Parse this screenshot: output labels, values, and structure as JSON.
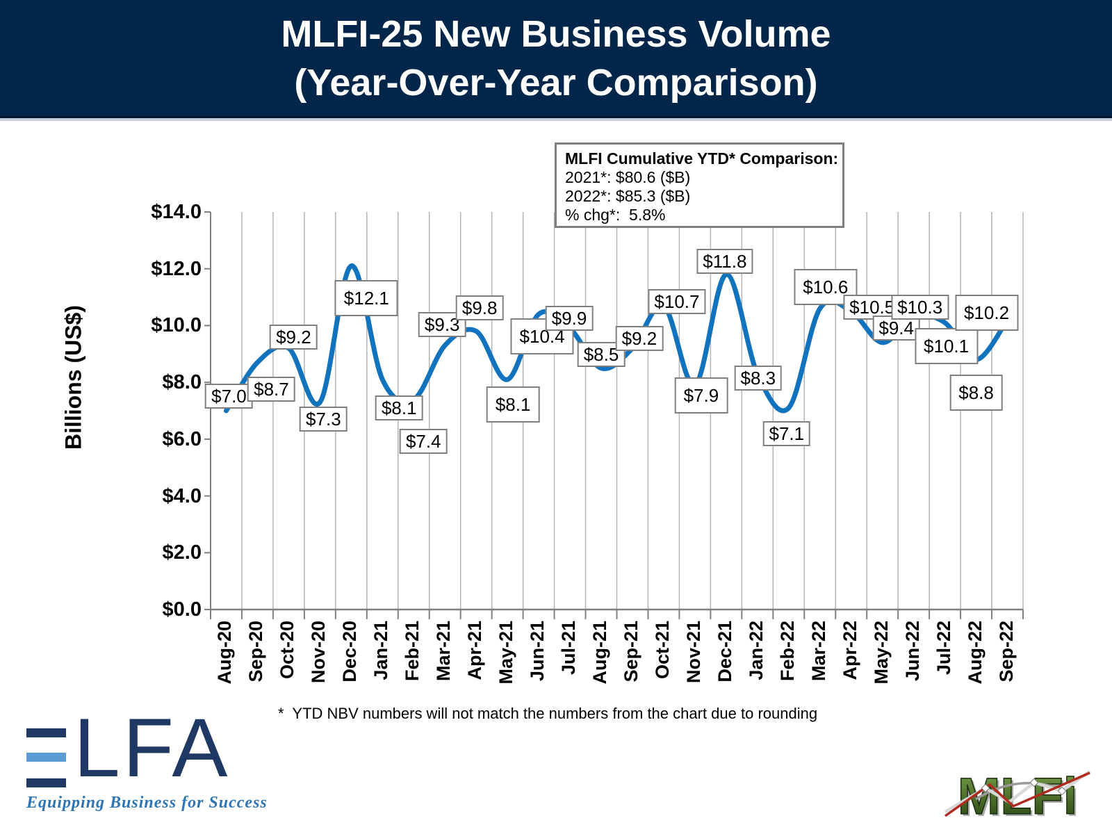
{
  "title": {
    "line1": "MLFI-25 New Business Volume",
    "line2": "(Year-Over-Year Comparison)"
  },
  "ytd_box": {
    "heading": "MLFI Cumulative YTD* Comparison:",
    "line_2021": "2021*: $80.6 ($B)",
    "line_2022": "2022*: $85.3 ($B)",
    "line_chg": "% chg*:  5.8%"
  },
  "footnote": "*  YTD NBV numbers will not match the numbers from the chart due to rounding",
  "logos": {
    "elfa_letters": "LFA",
    "elfa_tagline": "Equipping Business for Success",
    "mlfi_text": "MLFi"
  },
  "colors": {
    "header_bg": "#022649",
    "line": "#1173BD",
    "gridline": "#b3b3b3",
    "axis": "#808080",
    "elfa_navy": "#203864",
    "elfa_light_blue": "#5b9bd5",
    "tagline_blue": "#2e75b5",
    "mlfi_green_light": "#7aa34d",
    "mlfi_green_dark": "#24400f",
    "mlfi_red": "#b02a1e"
  },
  "chart_data": {
    "type": "line",
    "title": "MLFI-25 New Business Volume (Year-Over-Year Comparison)",
    "xlabel": "",
    "ylabel": "Billions (US$)",
    "ylim": [
      0,
      14
    ],
    "ytick_step": 2,
    "ytick_labels": [
      "$0.0",
      "$2.0",
      "$4.0",
      "$6.0",
      "$8.0",
      "$10.0",
      "$12.0",
      "$14.0"
    ],
    "grid": "vertical-only",
    "legend": "none",
    "smooth": true,
    "categories": [
      "Aug-20",
      "Sep-20",
      "Oct-20",
      "Nov-20",
      "Dec-20",
      "Jan-21",
      "Feb-21",
      "Mar-21",
      "Apr-21",
      "May-21",
      "Jun-21",
      "Jul-21",
      "Aug-21",
      "Sep-21",
      "Oct-21",
      "Nov-21",
      "Dec-21",
      "Jan-22",
      "Feb-22",
      "Mar-22",
      "Apr-22",
      "May-22",
      "Jun-22",
      "Jul-22",
      "Aug-22",
      "Sep-22"
    ],
    "values": [
      7.0,
      8.7,
      9.2,
      7.3,
      12.1,
      8.1,
      7.4,
      9.3,
      9.8,
      8.1,
      10.4,
      9.9,
      8.5,
      9.2,
      10.7,
      7.9,
      11.8,
      8.3,
      7.1,
      10.6,
      10.5,
      9.4,
      10.3,
      10.1,
      8.8,
      10.2
    ],
    "point_labels": [
      "$7.0",
      "$8.7",
      "$9.2",
      "$7.3",
      "$12.1",
      "$8.1",
      "$7.4",
      "$9.3",
      "$9.8",
      "$8.1",
      "$10.4",
      "$9.9",
      "$8.5",
      "$9.2",
      "$10.7",
      "$7.9",
      "$11.8",
      "$8.3",
      "$7.1",
      "$10.6",
      "$10.5",
      "$9.4",
      "$10.3",
      "$10.1",
      "$8.8",
      "$10.2"
    ]
  }
}
